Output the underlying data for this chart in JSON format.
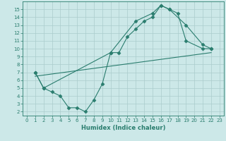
{
  "line1_x": [
    1,
    2,
    3,
    4,
    5,
    6,
    7,
    8,
    9,
    10,
    11,
    12,
    13,
    14,
    15,
    16,
    17,
    18,
    19,
    21,
    22
  ],
  "line1_y": [
    7,
    5,
    4.5,
    4,
    2.5,
    2.5,
    2,
    3.5,
    5.5,
    9.5,
    9.5,
    11.5,
    12.5,
    13.5,
    14,
    15.5,
    15,
    14.5,
    11,
    10,
    10
  ],
  "line2_x": [
    1,
    2,
    10,
    13,
    15,
    16,
    17,
    19,
    21,
    22
  ],
  "line2_y": [
    7,
    5,
    9.5,
    13.5,
    14.5,
    15.5,
    15,
    13,
    10.5,
    10
  ],
  "line3_x": [
    1,
    22
  ],
  "line3_y": [
    6.5,
    9.5
  ],
  "color": "#2a7d6e",
  "bg_color": "#cce8e8",
  "grid_color": "#aacccc",
  "xlabel": "Humidex (Indice chaleur)",
  "xlim": [
    -0.5,
    23.5
  ],
  "ylim": [
    1.5,
    16
  ],
  "xticks": [
    0,
    1,
    2,
    3,
    4,
    5,
    6,
    7,
    8,
    9,
    10,
    11,
    12,
    13,
    14,
    15,
    16,
    17,
    18,
    19,
    20,
    21,
    22,
    23
  ],
  "yticks": [
    2,
    3,
    4,
    5,
    6,
    7,
    8,
    9,
    10,
    11,
    12,
    13,
    14,
    15
  ],
  "marker": "D",
  "markersize": 2.5,
  "linewidth": 0.8,
  "tick_fontsize": 5.0,
  "xlabel_fontsize": 6.0
}
